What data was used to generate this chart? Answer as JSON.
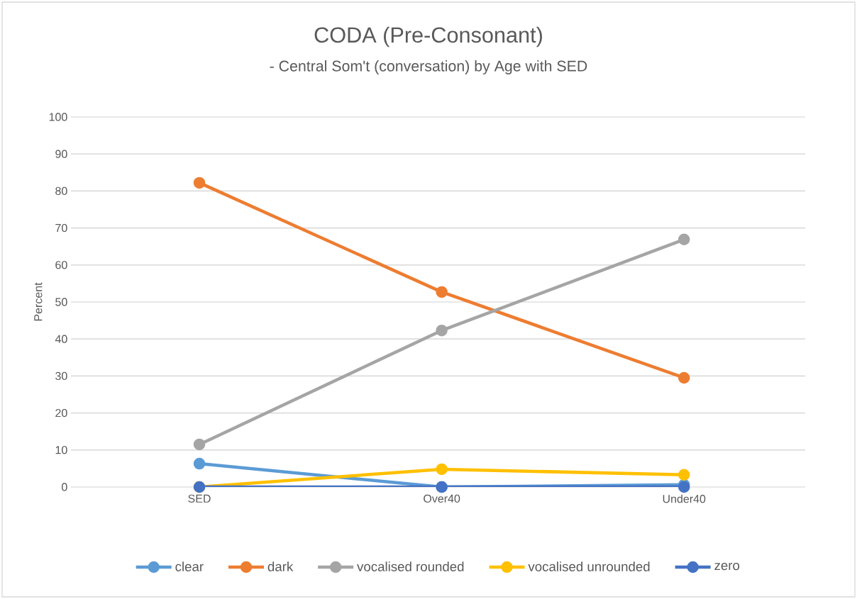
{
  "chart_data": {
    "type": "line",
    "title": "CODA (Pre-Consonant)",
    "subtitle": "- Central Som't (conversation) by Age with SED",
    "ylabel": "Percent",
    "categories": [
      "SED",
      "Over40",
      "Under40"
    ],
    "series": [
      {
        "name": "clear",
        "color": "#5b9bd5",
        "values": [
          6.3,
          0,
          0.6
        ]
      },
      {
        "name": "dark",
        "color": "#ed7d31",
        "values": [
          82.2,
          52.7,
          29.5
        ]
      },
      {
        "name": "vocalised rounded",
        "color": "#a5a5a5",
        "values": [
          11.5,
          42.3,
          66.9
        ]
      },
      {
        "name": "vocalised unrounded",
        "color": "#ffc000",
        "values": [
          0,
          4.8,
          3.3
        ]
      },
      {
        "name": "zero",
        "color": "#4472c4",
        "values": [
          0,
          0,
          0
        ]
      }
    ],
    "ylim": [
      0,
      100
    ],
    "yticks": [
      0,
      10,
      20,
      30,
      40,
      50,
      60,
      70,
      80,
      90,
      100
    ],
    "grid": "y",
    "legend": "bottom",
    "marker": "circle",
    "line_style": "solid"
  }
}
